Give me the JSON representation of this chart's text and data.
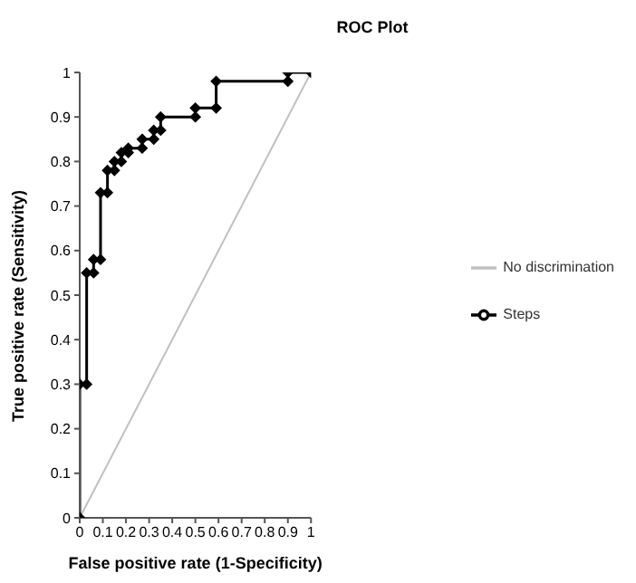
{
  "chart_data": {
    "type": "line",
    "title": "ROC Plot",
    "xlabel": "False positive rate (1-Specificity)",
    "ylabel": "True positive rate (Sensitivity)",
    "xlim": [
      0,
      1
    ],
    "ylim": [
      0,
      1
    ],
    "xticks": [
      0,
      0.1,
      0.2,
      0.3,
      0.4,
      0.5,
      0.6,
      0.7,
      0.8,
      0.9,
      1
    ],
    "yticks": [
      0,
      0.1,
      0.2,
      0.3,
      0.4,
      0.5,
      0.6,
      0.7,
      0.8,
      0.9,
      1
    ],
    "grid": false,
    "legend": "right",
    "series": [
      {
        "name": "No discrimination",
        "color": "#c0c0c0",
        "marker": "none",
        "x": [
          0,
          1
        ],
        "values": [
          0,
          1
        ]
      },
      {
        "name": "Steps",
        "color": "#000000",
        "marker": "diamond",
        "x": [
          0,
          0,
          0.03,
          0.03,
          0.06,
          0.06,
          0.09,
          0.09,
          0.12,
          0.12,
          0.15,
          0.15,
          0.18,
          0.18,
          0.21,
          0.21,
          0.27,
          0.27,
          0.32,
          0.32,
          0.35,
          0.35,
          0.5,
          0.5,
          0.59,
          0.59,
          0.9,
          0.9,
          1
        ],
        "values": [
          0,
          0.3,
          0.3,
          0.55,
          0.55,
          0.58,
          0.58,
          0.73,
          0.73,
          0.78,
          0.78,
          0.8,
          0.8,
          0.82,
          0.82,
          0.83,
          0.83,
          0.85,
          0.85,
          0.87,
          0.87,
          0.9,
          0.9,
          0.92,
          0.92,
          0.98,
          0.98,
          1,
          1
        ]
      }
    ]
  }
}
